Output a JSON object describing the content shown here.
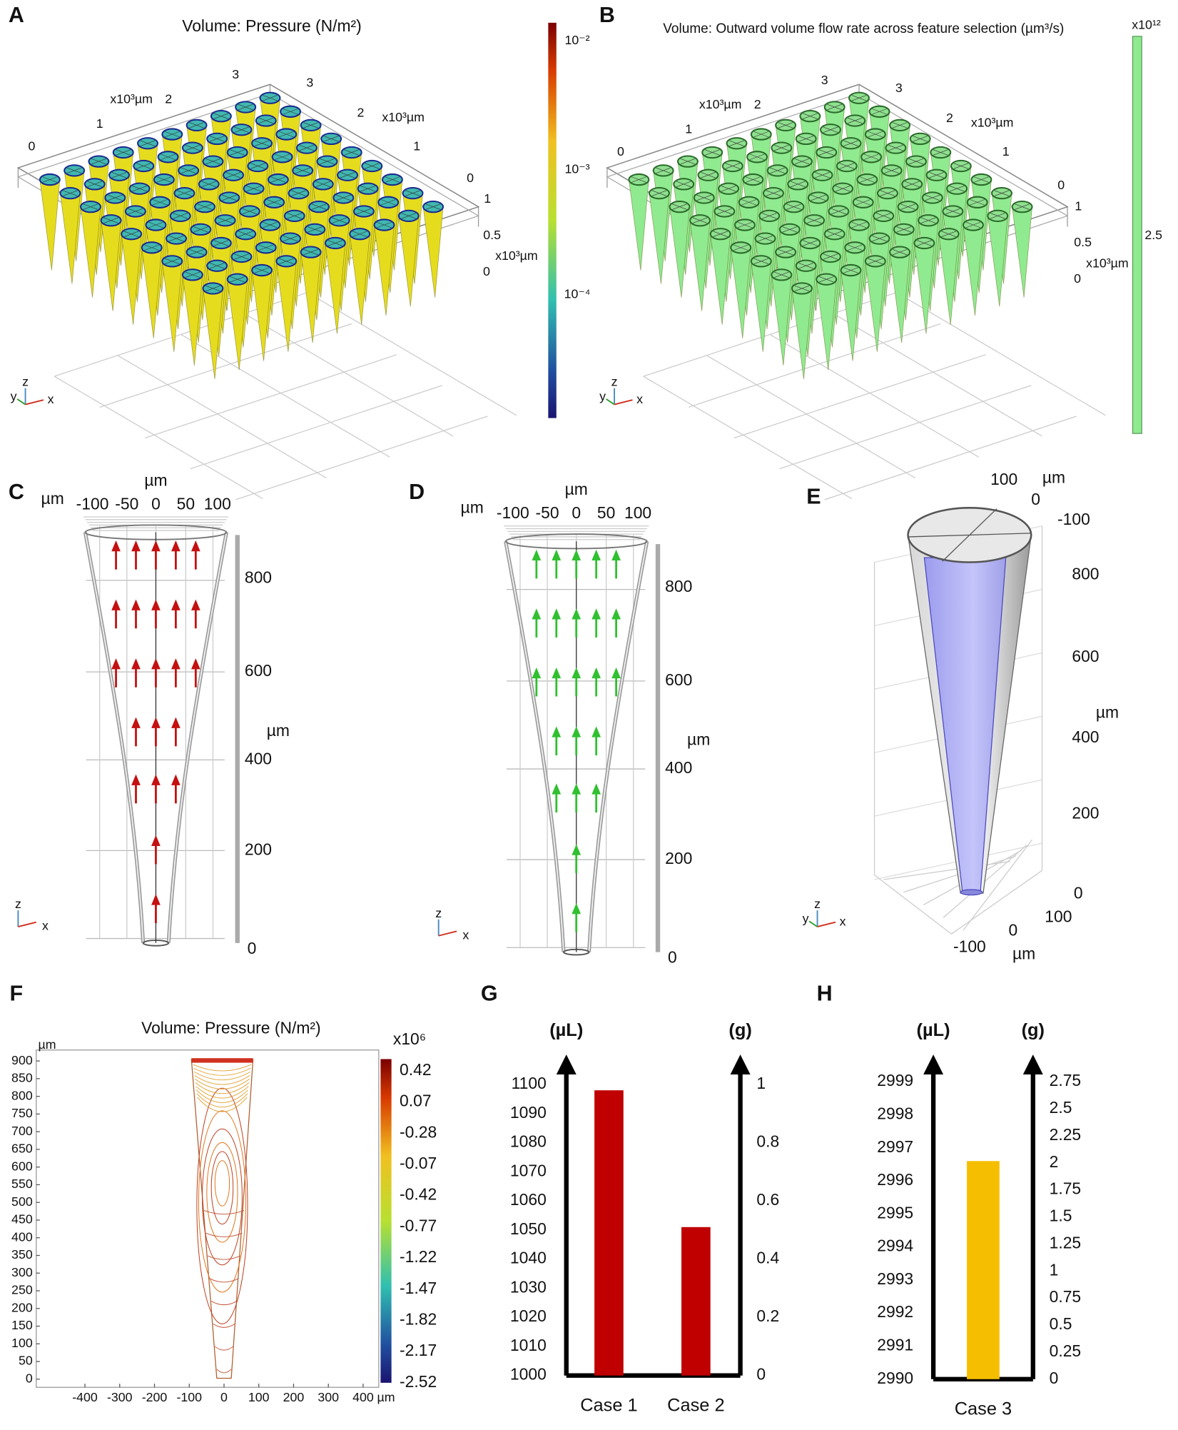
{
  "panels": {
    "A": {
      "label": "A",
      "title": "Volume: Pressure (N/m²)",
      "axis_labels": [
        "0",
        "1",
        "x10³µm",
        "2",
        "3",
        "3",
        "2",
        "x10³µm",
        "1",
        "0",
        "1",
        "0.5",
        "x10³µm",
        "0"
      ],
      "colorbar_labels": [
        "10⁻²",
        "10⁻³",
        "10⁻⁴"
      ],
      "triad": [
        "z",
        "y",
        "x"
      ]
    },
    "B": {
      "label": "B",
      "title": "Volume: Outward volume flow rate across feature selection (µm³/s)",
      "axis_labels": [
        "0",
        "1",
        "x10³µm",
        "2",
        "3",
        "3",
        "2",
        "x10³µm",
        "1",
        "0",
        "1",
        "0.5",
        "x10³µm",
        "0"
      ],
      "colorbar_labels": [
        "x10¹²",
        "2.5"
      ],
      "triad": [
        "z",
        "y",
        "x"
      ]
    },
    "C": {
      "label": "C",
      "axis_labels": [
        "µm",
        "µm",
        "-100",
        "-50",
        "0",
        "50",
        "100",
        "800",
        "600",
        "µm",
        "400",
        "200",
        "0"
      ],
      "triad": [
        "z",
        "x"
      ]
    },
    "D": {
      "label": "D",
      "axis_labels": [
        "µm",
        "µm",
        "-100",
        "-50",
        "0",
        "50",
        "100",
        "800",
        "600",
        "µm",
        "400",
        "200",
        "0"
      ],
      "triad": [
        "z",
        "x"
      ]
    },
    "E": {
      "label": "E",
      "axis_labels": [
        "100",
        "µm",
        "0",
        "-100",
        "800",
        "600",
        "µm",
        "400",
        "200",
        "0",
        "100",
        "0",
        "-100",
        "µm"
      ],
      "triad": [
        "z",
        "y",
        "x"
      ]
    }
  },
  "chart_data": [
    {
      "type": "contour",
      "label": "F",
      "title": "Volume: Pressure (N/m²)",
      "ylabel": "µm",
      "xlabel": "µm",
      "xlim": [
        -540,
        445
      ],
      "xticks": [
        -400,
        -300,
        -200,
        -100,
        0,
        100,
        200,
        300,
        400
      ],
      "ylim": [
        -23,
        931
      ],
      "yticks": [
        0,
        50,
        100,
        150,
        200,
        250,
        300,
        350,
        400,
        450,
        500,
        550,
        600,
        650,
        700,
        750,
        800,
        850,
        900
      ],
      "colorbar_title": "x10⁶",
      "colorbar_labels": [
        "0.42",
        "0.07",
        "-0.28",
        "-0.07",
        "-0.42",
        "-0.77",
        "-1.22",
        "-1.47",
        "-1.82",
        "-2.17",
        "-2.52"
      ]
    },
    {
      "type": "bar",
      "label": "G",
      "ylabel": "(µL)",
      "y2label": "(g)",
      "categories": [
        "Case 1",
        "Case 2"
      ],
      "values": [
        1098,
        1051
      ],
      "color": "#c00000",
      "ylim": [
        1000,
        1100
      ],
      "yticks": [
        1000,
        1010,
        1020,
        1030,
        1040,
        1050,
        1060,
        1070,
        1080,
        1090,
        1100
      ],
      "y2lim": [
        0,
        1
      ],
      "y2ticks": [
        0,
        0.2,
        0.4,
        0.6,
        0.8,
        1
      ]
    },
    {
      "type": "bar",
      "label": "H",
      "ylabel": "(µL)",
      "y2label": "(g)",
      "categories": [
        "Case 3"
      ],
      "values": [
        2996.6
      ],
      "color": "#f5bf00",
      "ylim": [
        2990,
        2999
      ],
      "yticks": [
        2990,
        2991,
        2992,
        2993,
        2994,
        2995,
        2996,
        2997,
        2998,
        2999
      ],
      "y2lim": [
        0,
        2.75
      ],
      "y2ticks": [
        0,
        0.25,
        0.5,
        0.75,
        1,
        1.25,
        1.5,
        1.75,
        2,
        2.25,
        2.5,
        2.75
      ]
    }
  ]
}
